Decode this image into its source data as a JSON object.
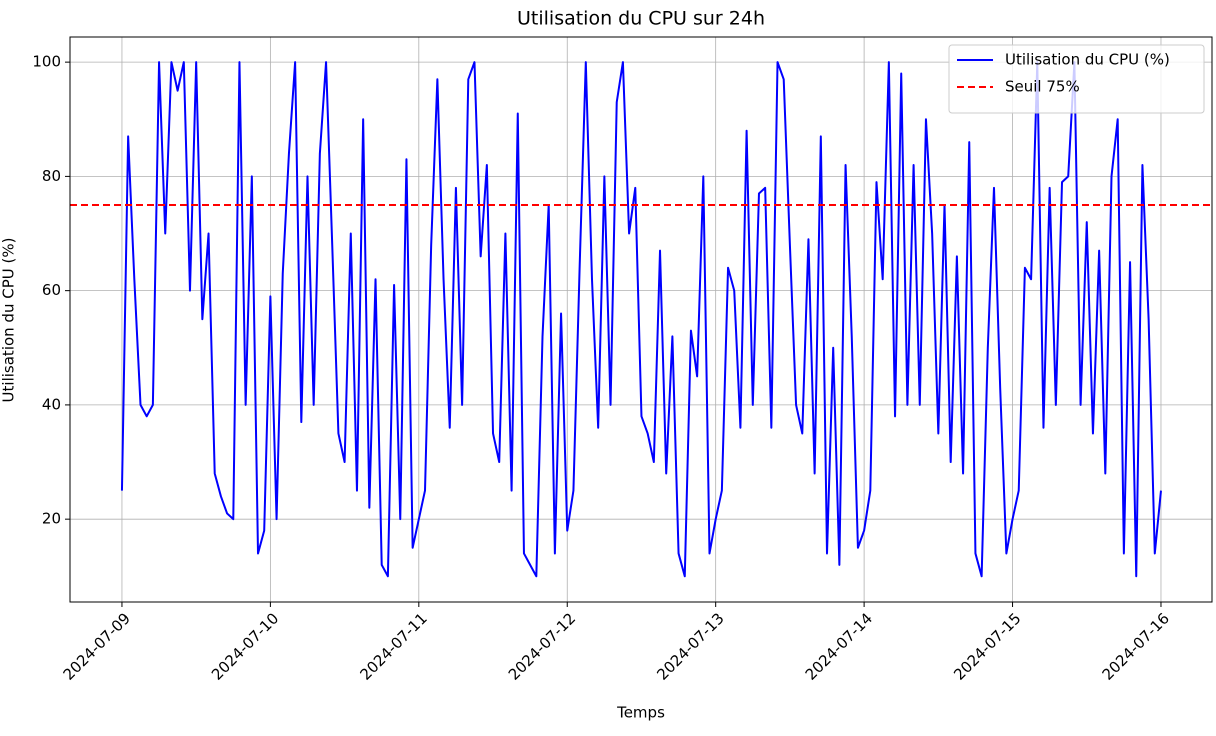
{
  "chart_data": {
    "type": "line",
    "title": "Utilisation du CPU sur 24h",
    "xlabel": "Temps",
    "ylabel": "Utilisation du CPU (%)",
    "x": [
      "2024-07-09T00:00",
      "2024-07-09T01:00",
      "2024-07-09T02:00",
      "2024-07-09T03:00",
      "2024-07-09T04:00",
      "2024-07-09T05:00",
      "2024-07-09T06:00",
      "2024-07-09T07:00",
      "2024-07-09T08:00",
      "2024-07-09T09:00",
      "2024-07-09T10:00",
      "2024-07-09T11:00",
      "2024-07-09T12:00",
      "2024-07-09T13:00",
      "2024-07-09T14:00",
      "2024-07-09T15:00",
      "2024-07-09T16:00",
      "2024-07-09T17:00",
      "2024-07-09T18:00",
      "2024-07-09T19:00",
      "2024-07-09T20:00",
      "2024-07-09T21:00",
      "2024-07-09T22:00",
      "2024-07-09T23:00",
      "2024-07-10T00:00",
      "2024-07-10T01:00",
      "2024-07-10T02:00",
      "2024-07-10T03:00",
      "2024-07-10T04:00",
      "2024-07-10T05:00",
      "2024-07-10T06:00",
      "2024-07-10T07:00",
      "2024-07-10T08:00",
      "2024-07-10T09:00",
      "2024-07-10T10:00",
      "2024-07-10T11:00",
      "2024-07-10T12:00",
      "2024-07-10T13:00",
      "2024-07-10T14:00",
      "2024-07-10T15:00",
      "2024-07-10T16:00",
      "2024-07-10T17:00",
      "2024-07-10T18:00",
      "2024-07-10T19:00",
      "2024-07-10T20:00",
      "2024-07-10T21:00",
      "2024-07-10T22:00",
      "2024-07-10T23:00",
      "2024-07-11T00:00",
      "2024-07-11T01:00",
      "2024-07-11T02:00",
      "2024-07-11T03:00",
      "2024-07-11T04:00",
      "2024-07-11T05:00",
      "2024-07-11T06:00",
      "2024-07-11T07:00",
      "2024-07-11T08:00",
      "2024-07-11T09:00",
      "2024-07-11T10:00",
      "2024-07-11T11:00",
      "2024-07-11T12:00",
      "2024-07-11T13:00",
      "2024-07-11T14:00",
      "2024-07-11T15:00",
      "2024-07-11T16:00",
      "2024-07-11T17:00",
      "2024-07-11T18:00",
      "2024-07-11T19:00",
      "2024-07-11T20:00",
      "2024-07-11T21:00",
      "2024-07-11T22:00",
      "2024-07-11T23:00",
      "2024-07-12T00:00",
      "2024-07-12T01:00",
      "2024-07-12T02:00",
      "2024-07-12T03:00",
      "2024-07-12T04:00",
      "2024-07-12T05:00",
      "2024-07-12T06:00",
      "2024-07-12T07:00",
      "2024-07-12T08:00",
      "2024-07-12T09:00",
      "2024-07-12T10:00",
      "2024-07-12T11:00",
      "2024-07-12T12:00",
      "2024-07-12T13:00",
      "2024-07-12T14:00",
      "2024-07-12T15:00",
      "2024-07-12T16:00",
      "2024-07-12T17:00",
      "2024-07-12T18:00",
      "2024-07-12T19:00",
      "2024-07-12T20:00",
      "2024-07-12T21:00",
      "2024-07-12T22:00",
      "2024-07-12T23:00",
      "2024-07-13T00:00",
      "2024-07-13T01:00",
      "2024-07-13T02:00",
      "2024-07-13T03:00",
      "2024-07-13T04:00",
      "2024-07-13T05:00",
      "2024-07-13T06:00",
      "2024-07-13T07:00",
      "2024-07-13T08:00",
      "2024-07-13T09:00",
      "2024-07-13T10:00",
      "2024-07-13T11:00",
      "2024-07-13T12:00",
      "2024-07-13T13:00",
      "2024-07-13T14:00",
      "2024-07-13T15:00",
      "2024-07-13T16:00",
      "2024-07-13T17:00",
      "2024-07-13T18:00",
      "2024-07-13T19:00",
      "2024-07-13T20:00",
      "2024-07-13T21:00",
      "2024-07-13T22:00",
      "2024-07-13T23:00",
      "2024-07-14T00:00",
      "2024-07-14T01:00",
      "2024-07-14T02:00",
      "2024-07-14T03:00",
      "2024-07-14T04:00",
      "2024-07-14T05:00",
      "2024-07-14T06:00",
      "2024-07-14T07:00",
      "2024-07-14T08:00",
      "2024-07-14T09:00",
      "2024-07-14T10:00",
      "2024-07-14T11:00",
      "2024-07-14T12:00",
      "2024-07-14T13:00",
      "2024-07-14T14:00",
      "2024-07-14T15:00",
      "2024-07-14T16:00",
      "2024-07-14T17:00",
      "2024-07-14T18:00",
      "2024-07-14T19:00",
      "2024-07-14T20:00",
      "2024-07-14T21:00",
      "2024-07-14T22:00",
      "2024-07-14T23:00",
      "2024-07-15T00:00",
      "2024-07-15T01:00",
      "2024-07-15T02:00",
      "2024-07-15T03:00",
      "2024-07-15T04:00",
      "2024-07-15T05:00",
      "2024-07-15T06:00",
      "2024-07-15T07:00",
      "2024-07-15T08:00",
      "2024-07-15T09:00",
      "2024-07-15T10:00",
      "2024-07-15T11:00",
      "2024-07-15T12:00",
      "2024-07-15T13:00",
      "2024-07-15T14:00",
      "2024-07-15T15:00",
      "2024-07-15T16:00",
      "2024-07-15T17:00",
      "2024-07-15T18:00",
      "2024-07-15T19:00",
      "2024-07-15T20:00",
      "2024-07-15T21:00",
      "2024-07-15T22:00",
      "2024-07-15T23:00",
      "2024-07-16T00:00"
    ],
    "series": [
      {
        "name": "Utilisation du CPU (%)",
        "color": "#0000ff",
        "values": [
          25,
          87,
          62,
          40,
          38,
          40,
          100,
          70,
          100,
          95,
          100,
          60,
          100,
          55,
          70,
          28,
          24,
          21,
          20,
          100,
          40,
          80,
          14,
          18,
          59,
          20,
          63,
          84,
          100,
          37,
          80,
          40,
          84,
          100,
          68,
          35,
          30,
          70,
          25,
          90,
          22,
          62,
          12,
          10,
          61,
          20,
          83,
          15,
          20,
          25,
          68,
          97,
          62,
          36,
          78,
          40,
          97,
          100,
          66,
          82,
          35,
          30,
          70,
          25,
          91,
          14,
          12,
          10,
          52,
          75,
          14,
          56,
          18,
          25,
          64,
          100,
          62,
          36,
          80,
          40,
          93,
          100,
          70,
          78,
          38,
          35,
          30,
          67,
          28,
          52,
          14,
          10,
          53,
          45,
          80,
          14,
          20,
          25,
          64,
          60,
          36,
          88,
          40,
          77,
          78,
          36,
          100,
          97,
          68,
          40,
          35,
          69,
          28,
          87,
          14,
          50,
          12,
          82,
          52,
          15,
          18,
          25,
          79,
          62,
          100,
          38,
          98,
          40,
          82,
          40,
          90,
          70,
          35,
          75,
          30,
          66,
          28,
          86,
          14,
          10,
          50,
          78,
          43,
          14,
          20,
          25,
          64,
          62,
          100,
          36,
          78,
          40,
          79,
          80,
          100,
          40,
          72,
          35,
          67,
          28,
          80,
          90,
          14,
          65,
          10,
          82,
          55,
          14,
          25
        ]
      }
    ],
    "threshold": {
      "name": "Seuil 75%",
      "color": "#ff0000",
      "value": 75
    },
    "xlim": [
      "2024-07-08T15:36",
      "2024-07-16T08:15"
    ],
    "xticks": [
      "2024-07-09",
      "2024-07-10",
      "2024-07-11",
      "2024-07-12",
      "2024-07-13",
      "2024-07-14",
      "2024-07-15",
      "2024-07-16"
    ],
    "ylim": [
      5.5,
      104.4
    ],
    "yticks": [
      20,
      40,
      60,
      80,
      100
    ],
    "grid": true,
    "legend": "upper right"
  }
}
